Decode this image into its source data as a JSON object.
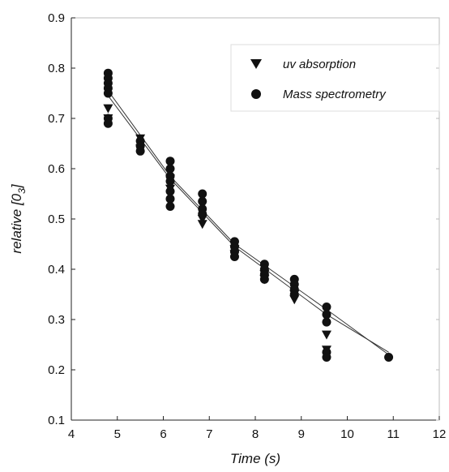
{
  "chart_data": {
    "type": "scatter",
    "xlabel": "Time (s)",
    "ylabel_main": "relative [0",
    "ylabel_sub": "3",
    "ylabel_close": "]",
    "xlim": [
      4,
      12
    ],
    "ylim": [
      0.1,
      0.9
    ],
    "xticks": [
      "4",
      "5",
      "6",
      "7",
      "8",
      "9",
      "10",
      "11",
      "12"
    ],
    "yticks": [
      "0.1",
      "0.2",
      "0.3",
      "0.4",
      "0.5",
      "0.6",
      "0.7",
      "0.8",
      "0.9"
    ],
    "legend_position": "top-right",
    "grid": false,
    "series": [
      {
        "name": "uv absorption",
        "marker": "triangle-down",
        "color": "#111111",
        "points": [
          [
            4.8,
            0.72
          ],
          [
            4.8,
            0.7
          ],
          [
            5.5,
            0.66
          ],
          [
            5.5,
            0.64
          ],
          [
            6.15,
            0.56
          ],
          [
            6.15,
            0.58
          ],
          [
            6.85,
            0.5
          ],
          [
            6.85,
            0.49
          ],
          [
            7.55,
            0.44
          ],
          [
            7.55,
            0.43
          ],
          [
            8.2,
            0.39
          ],
          [
            8.2,
            0.38
          ],
          [
            8.85,
            0.35
          ],
          [
            8.85,
            0.34
          ],
          [
            9.55,
            0.27
          ],
          [
            9.55,
            0.24
          ]
        ],
        "fit": [
          [
            4.8,
            0.745
          ],
          [
            6.15,
            0.58
          ],
          [
            7.55,
            0.445
          ],
          [
            9.55,
            0.31
          ],
          [
            10.9,
            0.235
          ]
        ]
      },
      {
        "name": "Mass spectrometry",
        "marker": "circle",
        "color": "#111111",
        "points": [
          [
            4.8,
            0.79
          ],
          [
            4.8,
            0.78
          ],
          [
            4.8,
            0.77
          ],
          [
            4.8,
            0.76
          ],
          [
            4.8,
            0.75
          ],
          [
            4.8,
            0.7
          ],
          [
            4.8,
            0.69
          ],
          [
            5.5,
            0.655
          ],
          [
            5.5,
            0.645
          ],
          [
            5.5,
            0.635
          ],
          [
            6.15,
            0.615
          ],
          [
            6.15,
            0.6
          ],
          [
            6.15,
            0.585
          ],
          [
            6.15,
            0.575
          ],
          [
            6.15,
            0.555
          ],
          [
            6.15,
            0.54
          ],
          [
            6.15,
            0.525
          ],
          [
            6.85,
            0.55
          ],
          [
            6.85,
            0.535
          ],
          [
            6.85,
            0.52
          ],
          [
            6.85,
            0.51
          ],
          [
            7.55,
            0.455
          ],
          [
            7.55,
            0.445
          ],
          [
            7.55,
            0.435
          ],
          [
            7.55,
            0.425
          ],
          [
            8.2,
            0.41
          ],
          [
            8.2,
            0.4
          ],
          [
            8.2,
            0.39
          ],
          [
            8.2,
            0.38
          ],
          [
            8.85,
            0.38
          ],
          [
            8.85,
            0.37
          ],
          [
            8.85,
            0.36
          ],
          [
            8.85,
            0.35
          ],
          [
            9.55,
            0.325
          ],
          [
            9.55,
            0.31
          ],
          [
            9.55,
            0.295
          ],
          [
            9.55,
            0.235
          ],
          [
            9.55,
            0.225
          ],
          [
            10.9,
            0.225
          ]
        ],
        "fit": [
          [
            4.8,
            0.755
          ],
          [
            6.15,
            0.585
          ],
          [
            7.55,
            0.45
          ],
          [
            9.55,
            0.32
          ],
          [
            10.9,
            0.23
          ]
        ]
      }
    ]
  }
}
